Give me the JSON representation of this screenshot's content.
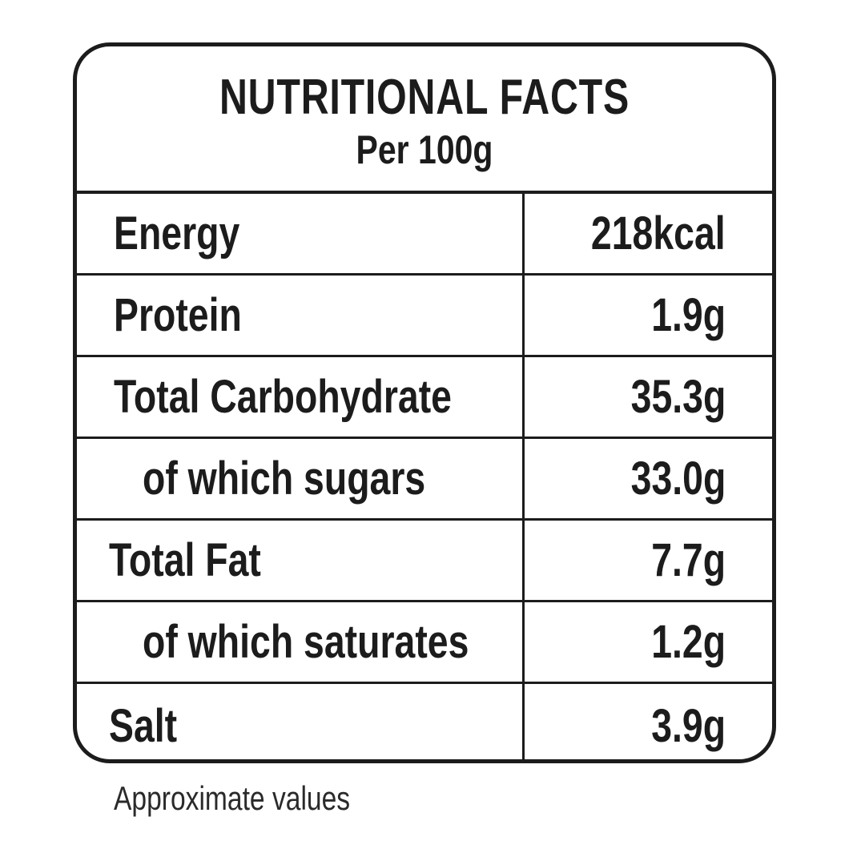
{
  "label": {
    "title": "NUTRITIONAL FACTS",
    "subtitle": "Per 100g",
    "rows": [
      {
        "name": "Energy",
        "value": "218kcal"
      },
      {
        "name": "Protein",
        "value": "1.9g"
      },
      {
        "name": "Total Carbohydrate",
        "value": "35.3g"
      },
      {
        "name": "of which sugars",
        "value": "33.0g"
      },
      {
        "name": "Total Fat",
        "value": "7.7g"
      },
      {
        "name": "of which saturates",
        "value": "1.2g"
      },
      {
        "name": "Salt",
        "value": "3.9g"
      }
    ],
    "footnote": "Approximate values"
  }
}
